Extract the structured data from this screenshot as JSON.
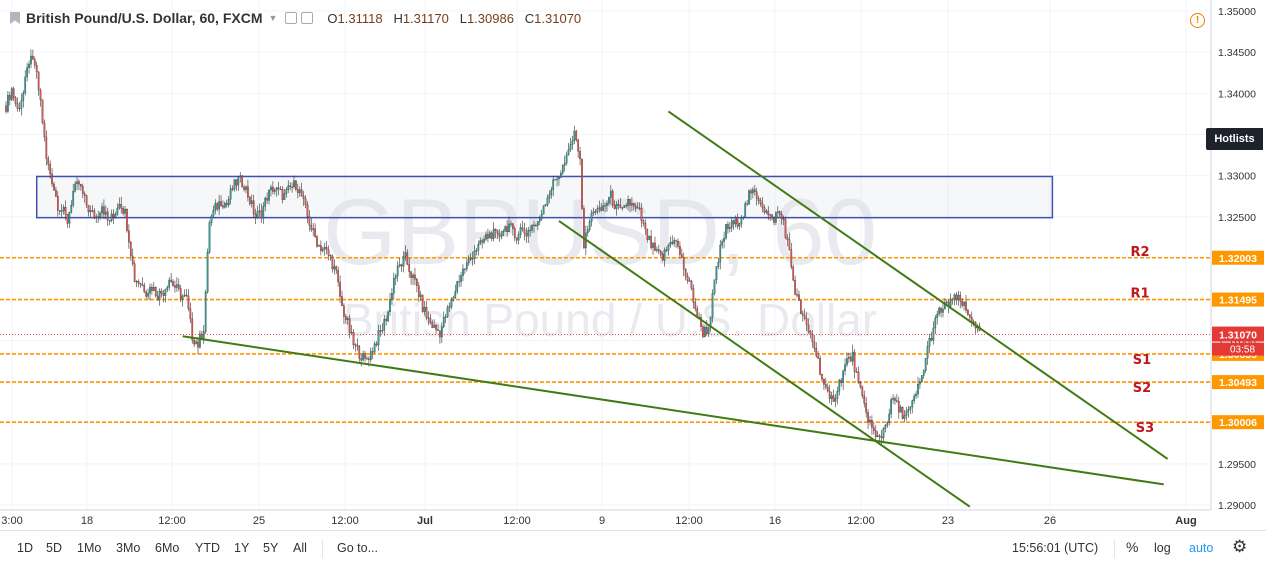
{
  "header": {
    "symbol": "British Pound/U.S. Dollar, 60, FXCM",
    "open_label": "O",
    "open": "1.31118",
    "high_label": "H",
    "high": "1.31170",
    "low_label": "L",
    "low": "1.30986",
    "close_label": "C",
    "close": "1.31070"
  },
  "watermark": {
    "ticker": "GBPUSD, 60",
    "name": "British Pound / U.S. Dollar"
  },
  "hotlists_label": "Hotlists",
  "colors": {
    "up": "#26a69a",
    "down": "#ef5350",
    "trendline": "#3f7b13",
    "level": "#ff9800",
    "zone_border": "#3f51b5",
    "level_label": "#c0171b",
    "price_line": "#e53935"
  },
  "bottom_bar": {
    "timeframes": [
      "1D",
      "5D",
      "1Mo",
      "3Mo",
      "6Mo",
      "YTD",
      "1Y",
      "5Y",
      "All"
    ],
    "goto": "Go to...",
    "clock": "15:56:01 (UTC)",
    "percent": "%",
    "log": "log",
    "auto": "auto"
  },
  "chart_data": {
    "type": "candlestick",
    "symbol": "GBPUSD",
    "interval": "60",
    "ylim": [
      1.29,
      1.35
    ],
    "y_ticks": [
      "1.35000",
      "1.34500",
      "1.34000",
      "1.33500",
      "1.33000",
      "1.32500",
      "1.32000",
      "1.31500",
      "1.31000",
      "1.30500",
      "1.30000",
      "1.29500",
      "1.29000"
    ],
    "x_ticks": [
      "3:00",
      "18",
      "12:00",
      "25",
      "12:00",
      "Jul",
      "12:00",
      "9",
      "12:00",
      "16",
      "12:00",
      "23",
      "26",
      "Aug"
    ],
    "last_price": "1.31070",
    "countdown": "03:58",
    "price_path": [
      [
        0,
        1.3385
      ],
      [
        3,
        1.3405
      ],
      [
        6,
        1.338
      ],
      [
        9,
        1.34
      ],
      [
        12,
        1.344
      ],
      [
        15,
        1.3435
      ],
      [
        18,
        1.339
      ],
      [
        21,
        1.332
      ],
      [
        24,
        1.3295
      ],
      [
        27,
        1.3265
      ],
      [
        30,
        1.3255
      ],
      [
        32,
        1.3245
      ],
      [
        35,
        1.328
      ],
      [
        38,
        1.329
      ],
      [
        41,
        1.327
      ],
      [
        44,
        1.3255
      ],
      [
        47,
        1.325
      ],
      [
        50,
        1.3265
      ],
      [
        53,
        1.3245
      ],
      [
        56,
        1.325
      ],
      [
        59,
        1.327
      ],
      [
        62,
        1.3255
      ],
      [
        64,
        1.3225
      ],
      [
        67,
        1.3175
      ],
      [
        70,
        1.317
      ],
      [
        73,
        1.316
      ],
      [
        76,
        1.3165
      ],
      [
        79,
        1.3155
      ],
      [
        82,
        1.316
      ],
      [
        85,
        1.3175
      ],
      [
        88,
        1.3165
      ],
      [
        91,
        1.3155
      ],
      [
        94,
        1.315
      ],
      [
        97,
        1.3105
      ],
      [
        100,
        1.3095
      ],
      [
        103,
        1.3115
      ],
      [
        106,
        1.3245
      ],
      [
        109,
        1.326
      ],
      [
        112,
        1.327
      ],
      [
        115,
        1.3265
      ],
      [
        118,
        1.3285
      ],
      [
        121,
        1.3295
      ],
      [
        124,
        1.329
      ],
      [
        127,
        1.327
      ],
      [
        130,
        1.325
      ],
      [
        133,
        1.3255
      ],
      [
        136,
        1.3275
      ],
      [
        139,
        1.3285
      ],
      [
        142,
        1.328
      ],
      [
        145,
        1.3275
      ],
      [
        148,
        1.3285
      ],
      [
        151,
        1.329
      ],
      [
        154,
        1.3275
      ],
      [
        157,
        1.325
      ],
      [
        160,
        1.323
      ],
      [
        163,
        1.3215
      ],
      [
        166,
        1.321
      ],
      [
        169,
        1.32
      ],
      [
        172,
        1.318
      ],
      [
        175,
        1.314
      ],
      [
        178,
        1.312
      ],
      [
        181,
        1.3095
      ],
      [
        184,
        1.3085
      ],
      [
        187,
        1.3075
      ],
      [
        190,
        1.3085
      ],
      [
        193,
        1.31
      ],
      [
        196,
        1.3115
      ],
      [
        199,
        1.3135
      ],
      [
        202,
        1.3175
      ],
      [
        205,
        1.319
      ],
      [
        208,
        1.32
      ],
      [
        211,
        1.318
      ],
      [
        214,
        1.3165
      ],
      [
        217,
        1.314
      ],
      [
        220,
        1.3125
      ],
      [
        223,
        1.3115
      ],
      [
        226,
        1.311
      ],
      [
        229,
        1.313
      ],
      [
        232,
        1.3145
      ],
      [
        235,
        1.317
      ],
      [
        238,
        1.3185
      ],
      [
        241,
        1.3195
      ],
      [
        244,
        1.321
      ],
      [
        247,
        1.3215
      ],
      [
        250,
        1.3225
      ],
      [
        253,
        1.323
      ],
      [
        256,
        1.3225
      ],
      [
        259,
        1.3235
      ],
      [
        262,
        1.324
      ],
      [
        265,
        1.3225
      ],
      [
        268,
        1.3235
      ],
      [
        271,
        1.323
      ],
      [
        274,
        1.324
      ],
      [
        277,
        1.324
      ],
      [
        280,
        1.3265
      ],
      [
        283,
        1.328
      ],
      [
        286,
        1.3295
      ],
      [
        289,
        1.3305
      ],
      [
        292,
        1.332
      ],
      [
        295,
        1.3345
      ],
      [
        297,
        1.335
      ],
      [
        299,
        1.3315
      ],
      [
        301,
        1.3215
      ],
      [
        303,
        1.3235
      ],
      [
        306,
        1.326
      ],
      [
        309,
        1.3255
      ],
      [
        312,
        1.3265
      ],
      [
        315,
        1.3275
      ],
      [
        318,
        1.326
      ],
      [
        321,
        1.3255
      ],
      [
        324,
        1.327
      ],
      [
        327,
        1.326
      ],
      [
        330,
        1.3255
      ],
      [
        333,
        1.323
      ],
      [
        336,
        1.3215
      ],
      [
        339,
        1.3205
      ],
      [
        342,
        1.32
      ],
      [
        345,
        1.3215
      ],
      [
        348,
        1.3225
      ],
      [
        351,
        1.3205
      ],
      [
        354,
        1.318
      ],
      [
        357,
        1.316
      ],
      [
        360,
        1.313
      ],
      [
        363,
        1.311
      ],
      [
        366,
        1.3115
      ],
      [
        369,
        1.317
      ],
      [
        372,
        1.321
      ],
      [
        375,
        1.3235
      ],
      [
        378,
        1.324
      ],
      [
        381,
        1.3245
      ],
      [
        384,
        1.3255
      ],
      [
        387,
        1.3275
      ],
      [
        390,
        1.328
      ],
      [
        393,
        1.327
      ],
      [
        396,
        1.3255
      ],
      [
        399,
        1.3245
      ],
      [
        402,
        1.3255
      ],
      [
        405,
        1.3245
      ],
      [
        408,
        1.3205
      ],
      [
        411,
        1.316
      ],
      [
        414,
        1.3135
      ],
      [
        417,
        1.3115
      ],
      [
        420,
        1.31
      ],
      [
        423,
        1.3075
      ],
      [
        426,
        1.3045
      ],
      [
        429,
        1.3025
      ],
      [
        432,
        1.3035
      ],
      [
        435,
        1.3055
      ],
      [
        438,
        1.3075
      ],
      [
        441,
        1.308
      ],
      [
        444,
        1.3045
      ],
      [
        447,
        1.302
      ],
      [
        450,
        1.3
      ],
      [
        453,
        1.298
      ],
      [
        456,
        1.2985
      ],
      [
        459,
        1.3005
      ],
      [
        462,
        1.303
      ],
      [
        465,
        1.3015
      ],
      [
        468,
        1.301
      ],
      [
        471,
        1.3015
      ],
      [
        474,
        1.3035
      ],
      [
        477,
        1.3055
      ],
      [
        480,
        1.309
      ],
      [
        483,
        1.3115
      ],
      [
        486,
        1.3135
      ],
      [
        489,
        1.314
      ],
      [
        492,
        1.3148
      ],
      [
        495,
        1.315
      ],
      [
        498,
        1.3145
      ],
      [
        501,
        1.313
      ],
      [
        504,
        1.3125
      ],
      [
        507,
        1.3107
      ]
    ],
    "levels": [
      {
        "label": "R2",
        "value": 1.32003,
        "tag": "1.32003"
      },
      {
        "label": "R1",
        "value": 1.31495,
        "tag": "1.31495"
      },
      {
        "label": "S1",
        "value": 1.30835,
        "tag": "1.30835"
      },
      {
        "label": "S2",
        "value": 1.30493,
        "tag": "1.30493"
      },
      {
        "label": "S3",
        "value": 1.30006,
        "tag": "1.30006"
      }
    ],
    "zone": {
      "from_bar": 16,
      "to_bar": 545,
      "top": 1.3299,
      "bottom": 1.3249
    },
    "trendlines": [
      {
        "p1": [
          92,
          1.3105
        ],
        "p2": [
          603,
          1.2925
        ]
      },
      {
        "p1": [
          288,
          1.3245
        ],
        "p2": [
          502,
          1.2898
        ]
      },
      {
        "p1": [
          345,
          1.3378
        ],
        "p2": [
          605,
          1.2956
        ]
      }
    ]
  }
}
